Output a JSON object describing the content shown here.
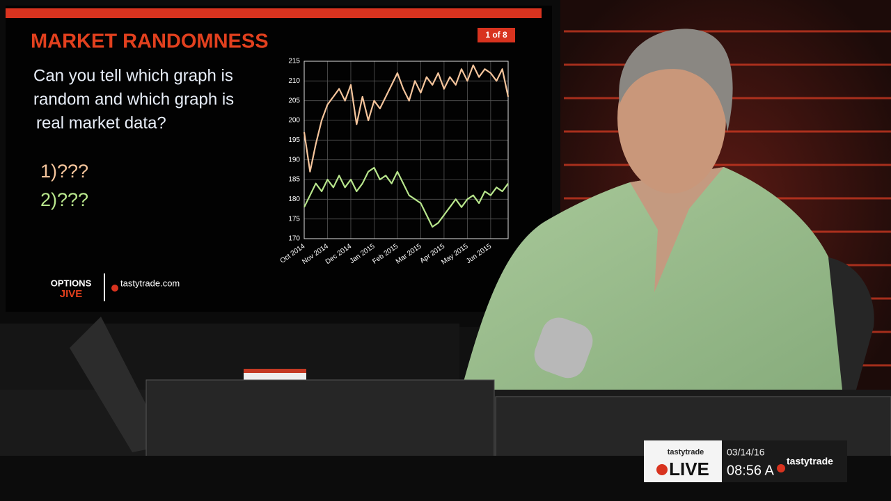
{
  "slide": {
    "title": "MARKET RANDOMNESS",
    "page": "1 of 8",
    "question": [
      "Can you tell which graph is",
      "random and which graph is",
      "real market data?"
    ],
    "options": [
      "1)???",
      "2)???"
    ],
    "logo_left": [
      "OPTIONS",
      "JIVE"
    ],
    "logo_right": "tastytrade.com"
  },
  "chart_data": {
    "type": "line",
    "categories": [
      "Oct 2014",
      null,
      null,
      null,
      "Nov 2014",
      null,
      null,
      null,
      "Dec 2014",
      null,
      null,
      null,
      "Jan 2015",
      null,
      null,
      null,
      "Feb 2015",
      null,
      null,
      null,
      "Mar 2015",
      null,
      null,
      null,
      "Apr 2015",
      null,
      null,
      null,
      "May 2015",
      null,
      null,
      null,
      "Jun 2015",
      null,
      null,
      null
    ],
    "series": [
      {
        "color": "#f6c59c",
        "values": [
          197,
          187,
          194,
          200,
          204,
          206,
          208,
          205,
          209,
          199,
          206,
          200,
          205,
          203,
          206,
          209,
          212,
          208,
          205,
          210,
          207,
          211,
          209,
          212,
          208,
          211,
          209,
          213,
          210,
          214,
          211,
          213,
          212,
          210,
          213,
          206
        ]
      },
      {
        "color": "#b8e68c",
        "values": [
          178,
          181,
          184,
          182,
          185,
          183,
          186,
          183,
          185,
          182,
          184,
          187,
          188,
          185,
          186,
          184,
          187,
          184,
          181,
          180,
          179,
          176,
          173,
          174,
          176,
          178,
          180,
          178,
          180,
          181,
          179,
          182,
          181,
          183,
          182,
          184
        ]
      }
    ],
    "ylim": [
      170,
      215
    ],
    "yticks": [
      170,
      175,
      180,
      185,
      190,
      195,
      200,
      205,
      210,
      215
    ],
    "grid": true
  },
  "ticker": {
    "brand": "tastytrade",
    "live": "LIVE",
    "date": "03/14/16",
    "time": "08:56 A",
    "logo": "tastytrade"
  }
}
